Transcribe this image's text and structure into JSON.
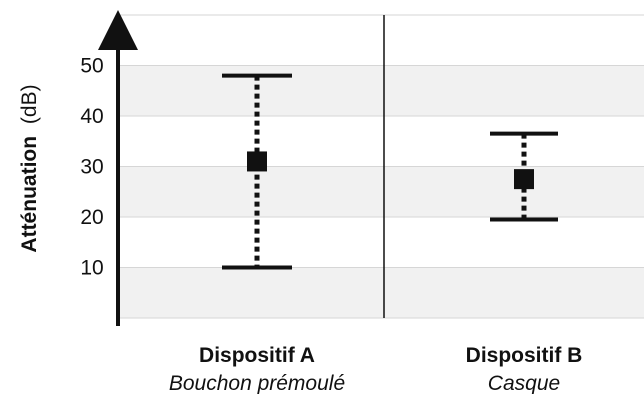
{
  "chart_data": {
    "type": "errorbar",
    "ylabel": "Atténuation",
    "ylabel_unit": "(dB)",
    "ylim": [
      0,
      60
    ],
    "yticks": [
      10,
      20,
      30,
      40,
      50
    ],
    "grid": "horizontal bands",
    "categories": [
      {
        "name": "Dispositif A",
        "subtitle": "Bouchon prémoulé",
        "mean": 31,
        "low": 10,
        "high": 48
      },
      {
        "name": "Dispositif B",
        "subtitle": "Casque",
        "mean": 27.5,
        "low": 19.5,
        "high": 36.5
      }
    ],
    "colors": {
      "band": "#f1f1f1",
      "grid": "#d6d6d6",
      "ink": "#111111"
    }
  }
}
